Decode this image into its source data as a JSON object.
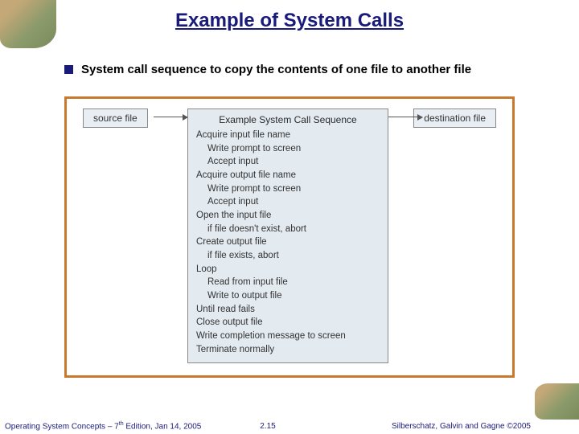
{
  "title": "Example of System Calls",
  "bullet": "System call sequence to copy the contents of one file to another file",
  "source_box": "source file",
  "dest_box": "destination file",
  "seq_title": "Example System Call Sequence",
  "seq": {
    "l0": "Acquire input file name",
    "l1": "Write prompt to screen",
    "l2": "Accept input",
    "l3": "Acquire output file name",
    "l4": "Write prompt to screen",
    "l5": "Accept input",
    "l6": "Open the input file",
    "l7": "if file doesn't exist, abort",
    "l8": "Create output file",
    "l9": "if file exists, abort",
    "l10": "Loop",
    "l11": "Read from input file",
    "l12": "Write to output file",
    "l13": "Until read fails",
    "l14": "Close output file",
    "l15": "Write completion message to screen",
    "l16": "Terminate normally"
  },
  "footer_left_a": "Operating System Concepts – 7",
  "footer_left_sup": "th",
  "footer_left_b": " Edition, Jan 14, 2005",
  "footer_center": "2.15",
  "footer_right_a": "Silberschatz, Galvin and Gagne ",
  "footer_right_b": "©2005"
}
